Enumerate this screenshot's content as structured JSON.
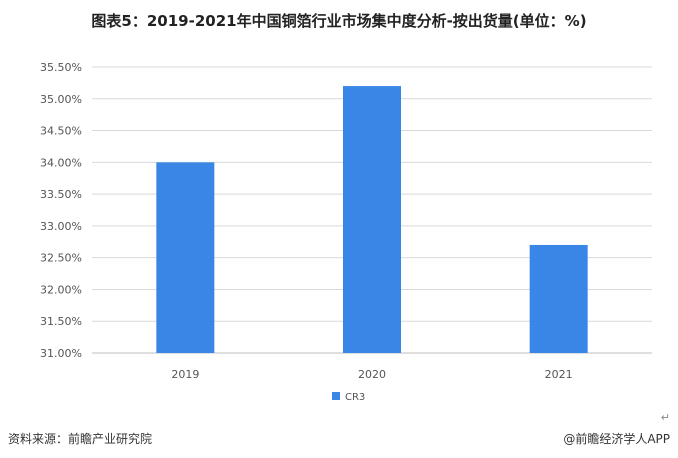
{
  "title": "图表5：2019-2021年中国铜箔行业市场集中度分析-按出货量(单位：%)",
  "footer": {
    "source": "资料来源：前瞻产业研究院",
    "app_credit": "@前瞻经济学人APP",
    "return_mark": "↵"
  },
  "colors": {
    "bar": "#3a86e6",
    "grid": "#d9d9d9",
    "axis": "#bfbfbf"
  },
  "chart_data": {
    "type": "bar",
    "categories": [
      "2019",
      "2020",
      "2021"
    ],
    "series": [
      {
        "name": "CR3",
        "values": [
          34.0,
          35.2,
          32.7
        ]
      }
    ],
    "ylim": [
      31.0,
      35.5
    ],
    "yticks": [
      "31.00%",
      "31.50%",
      "32.00%",
      "32.50%",
      "33.00%",
      "33.50%",
      "34.00%",
      "34.50%",
      "35.00%",
      "35.50%"
    ],
    "ytick_values": [
      31.0,
      31.5,
      32.0,
      32.5,
      33.0,
      33.5,
      34.0,
      34.5,
      35.0,
      35.5
    ],
    "grid": true,
    "legend": "bottom-center"
  }
}
